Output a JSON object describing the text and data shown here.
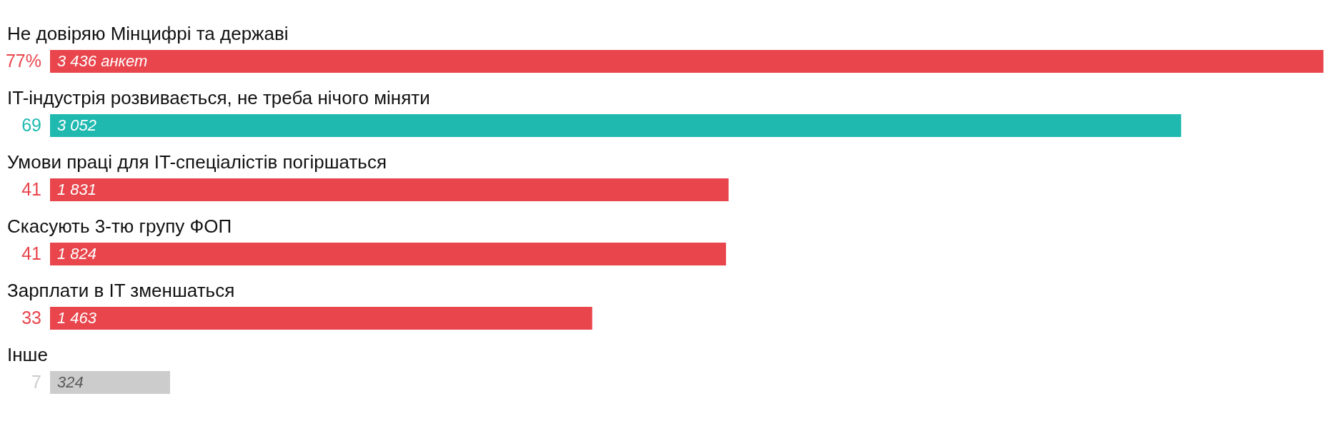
{
  "chart_data": {
    "type": "bar",
    "orientation": "horizontal",
    "categories": [
      "Не довіряю Мінцифрі та державі",
      "IT-індустрія розвивається, не треба нічого міняти",
      "Умови праці для IT-спеціалістів погіршаться",
      "Скасують 3-тю групу ФОП",
      "Зарплати в IT зменшаться",
      "Інше"
    ],
    "values": [
      3436,
      3052,
      1831,
      1824,
      1463,
      324
    ],
    "colors": [
      "#e8454c",
      "#20b9b0",
      "#e8454c",
      "#e8454c",
      "#e8454c",
      "#cccccc"
    ],
    "value_labels": [
      "3 436 анкет",
      "3 052",
      "1 831",
      "1 824",
      "1 463",
      "324"
    ],
    "annotations": [
      "77%",
      "69",
      "41",
      "41",
      "33",
      "7"
    ]
  }
}
